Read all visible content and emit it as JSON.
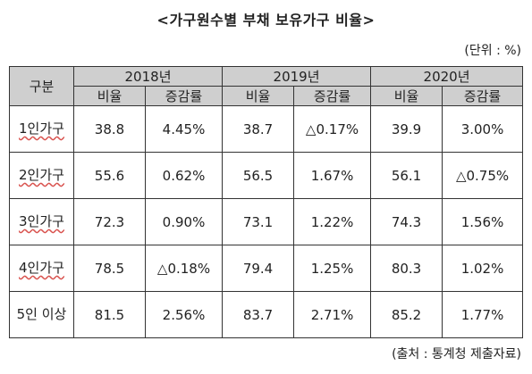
{
  "title": "<가구원수별 부채 보유가구 비율>",
  "unit": "(단위 : %)",
  "source": "(출처 : 통계청 제출자료)",
  "table": {
    "corner_header": "구분",
    "years": [
      "2018년",
      "2019년",
      "2020년"
    ],
    "subheaders": [
      "비율",
      "증감률",
      "비율",
      "증감률",
      "비율",
      "증감률"
    ],
    "rows": [
      {
        "label": "1인가구",
        "cells": [
          "38.8",
          "4.45%",
          "38.7",
          "△0.17%",
          "39.9",
          "3.00%"
        ]
      },
      {
        "label": "2인가구",
        "cells": [
          "55.6",
          "0.62%",
          "56.5",
          "1.67%",
          "56.1",
          "△0.75%"
        ]
      },
      {
        "label": "3인가구",
        "cells": [
          "72.3",
          "0.90%",
          "73.1",
          "1.22%",
          "74.3",
          "1.56%"
        ]
      },
      {
        "label": "4인가구",
        "cells": [
          "78.5",
          "△0.18%",
          "79.4",
          "1.25%",
          "80.3",
          "1.02%"
        ]
      },
      {
        "label": "5인 이상",
        "cells": [
          "81.5",
          "2.56%",
          "83.7",
          "2.71%",
          "85.2",
          "1.77%"
        ]
      }
    ]
  }
}
